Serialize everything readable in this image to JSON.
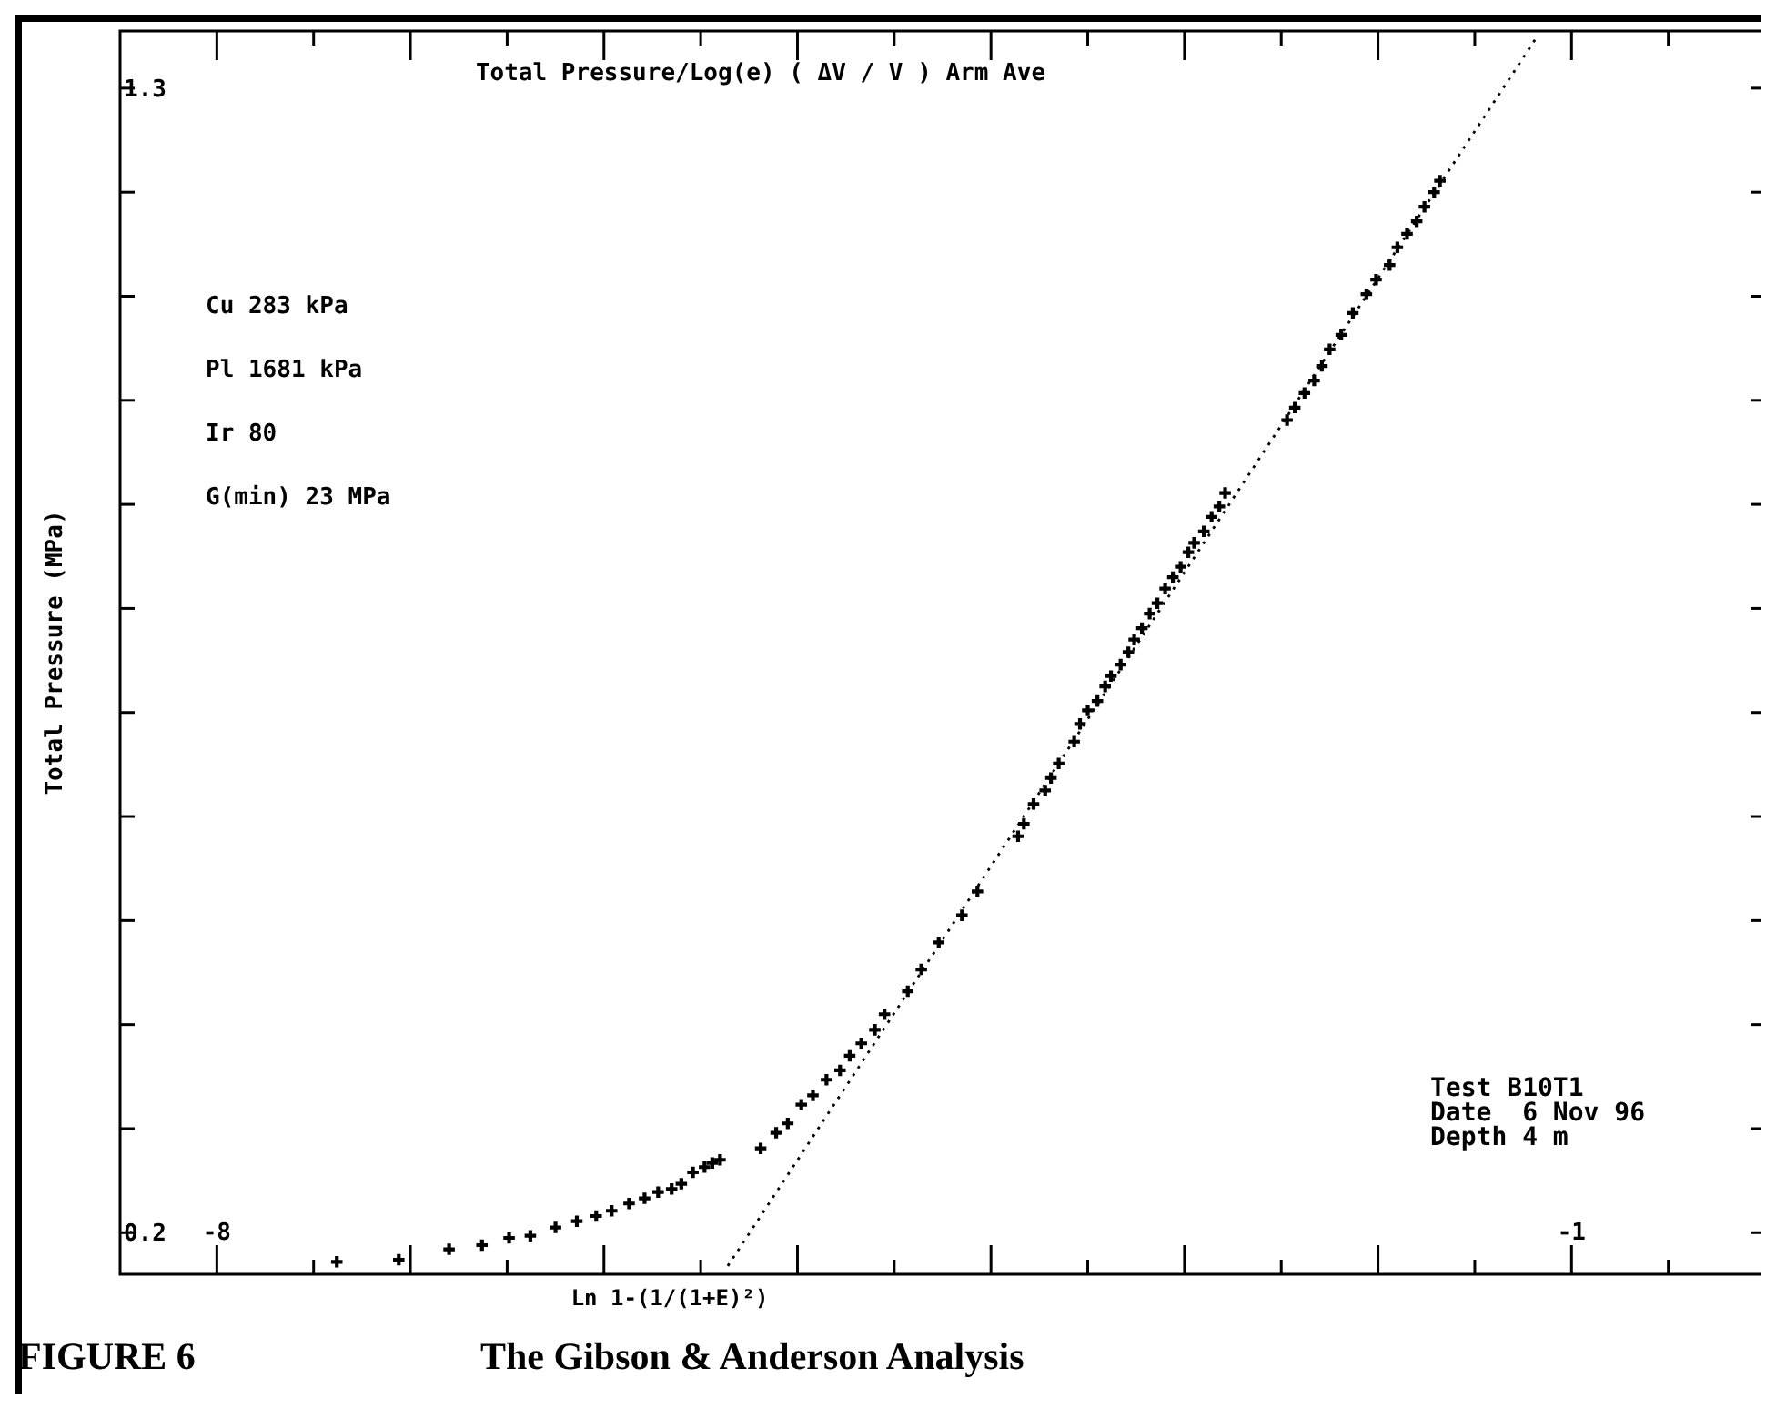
{
  "chart_data": {
    "type": "scatter",
    "title": "Total Pressure/Log(e) ( ΔV / V ) Arm Ave",
    "xlabel": "Ln 1-(1/(1+E)²)",
    "ylabel": "Total Pressure (MPa)",
    "annotations": [
      "Cu 283 kPa",
      "Pl 1681 kPa",
      "Ir 80",
      "G(min) 23 MPa",
      "Test B10T1",
      "Date  6 Nov 96",
      "Depth 4 m",
      "FIGURE 6",
      "The Gibson & Anderson Analysis"
    ],
    "xlim": [
      -8.5,
      0
    ],
    "ylim": [
      0.16,
      1.355
    ],
    "xticks": [
      {
        "value": -8,
        "label": "-8"
      },
      {
        "value": -7.5,
        "label": null
      },
      {
        "value": -7,
        "label": null
      },
      {
        "value": -6.5,
        "label": null
      },
      {
        "value": -6,
        "label": null
      },
      {
        "value": -5.5,
        "label": null
      },
      {
        "value": -5,
        "label": null
      },
      {
        "value": -4.5,
        "label": null
      },
      {
        "value": -4,
        "label": null
      },
      {
        "value": -3.5,
        "label": null
      },
      {
        "value": -3,
        "label": null
      },
      {
        "value": -2.5,
        "label": null
      },
      {
        "value": -2,
        "label": null
      },
      {
        "value": -1.5,
        "label": null
      },
      {
        "value": -1,
        "label": "-1"
      },
      {
        "value": -0.5,
        "label": null
      }
    ],
    "yticks": [
      {
        "value": 0.2,
        "label": "0.2"
      },
      {
        "value": 0.3,
        "label": null
      },
      {
        "value": 0.4,
        "label": null
      },
      {
        "value": 0.5,
        "label": null
      },
      {
        "value": 0.6,
        "label": null
      },
      {
        "value": 0.7,
        "label": null
      },
      {
        "value": 0.8,
        "label": null
      },
      {
        "value": 0.9,
        "label": null
      },
      {
        "value": 1.0,
        "label": null
      },
      {
        "value": 1.1,
        "label": null
      },
      {
        "value": 1.2,
        "label": null
      },
      {
        "value": 1.3,
        "label": "1.3"
      }
    ],
    "grid": false,
    "series": [
      {
        "marker": "cross",
        "color": "#000000",
        "x": [
          -7.38,
          -7.06,
          -6.8,
          -6.63,
          -6.49,
          -6.38,
          -6.25,
          -6.14,
          -6.04,
          -5.96,
          -5.87,
          -5.79,
          -5.72,
          -5.65,
          -5.6,
          -5.54,
          -5.48,
          -5.44,
          -5.4,
          -5.19,
          -5.11,
          -5.05,
          -4.98,
          -4.92,
          -4.85,
          -4.78,
          -4.73,
          -4.67,
          -4.6,
          -4.55,
          -4.43,
          -4.36,
          -4.27,
          -4.15,
          -4.07,
          -3.86,
          -3.83,
          -3.78,
          -3.72,
          -3.69,
          -3.65,
          -3.57,
          -3.54,
          -3.5,
          -3.45,
          -3.41,
          -3.38,
          -3.33,
          -3.29,
          -3.26,
          -3.22,
          -3.18,
          -3.14,
          -3.1,
          -3.06,
          -3.02,
          -2.98,
          -2.95,
          -2.9,
          -2.86,
          -2.82,
          -2.79,
          -2.47,
          -2.43,
          -2.38,
          -2.33,
          -2.29,
          -2.25,
          -2.19,
          -2.13,
          -2.06,
          -2.01,
          -1.94,
          -1.9,
          -1.85,
          -1.8,
          -1.76,
          -1.71,
          -1.68
        ],
        "values": [
          0.172,
          0.174,
          0.184,
          0.188,
          0.195,
          0.197,
          0.205,
          0.211,
          0.216,
          0.221,
          0.228,
          0.233,
          0.239,
          0.242,
          0.247,
          0.258,
          0.263,
          0.267,
          0.27,
          0.281,
          0.296,
          0.305,
          0.323,
          0.332,
          0.347,
          0.356,
          0.37,
          0.382,
          0.395,
          0.41,
          0.432,
          0.453,
          0.479,
          0.505,
          0.528,
          0.581,
          0.593,
          0.612,
          0.625,
          0.637,
          0.651,
          0.672,
          0.689,
          0.702,
          0.711,
          0.725,
          0.735,
          0.746,
          0.758,
          0.77,
          0.781,
          0.795,
          0.805,
          0.819,
          0.83,
          0.84,
          0.854,
          0.863,
          0.874,
          0.888,
          0.898,
          0.911,
          0.981,
          0.993,
          1.007,
          1.019,
          1.033,
          1.049,
          1.063,
          1.084,
          1.102,
          1.116,
          1.13,
          1.147,
          1.16,
          1.172,
          1.186,
          1.2,
          1.211
        ]
      },
      {
        "type": "line",
        "marker": "none",
        "line_style": "dotted",
        "color": "#000000",
        "x": [
          -5.36,
          -1.18
        ],
        "values": [
          0.168,
          1.349
        ]
      }
    ]
  }
}
